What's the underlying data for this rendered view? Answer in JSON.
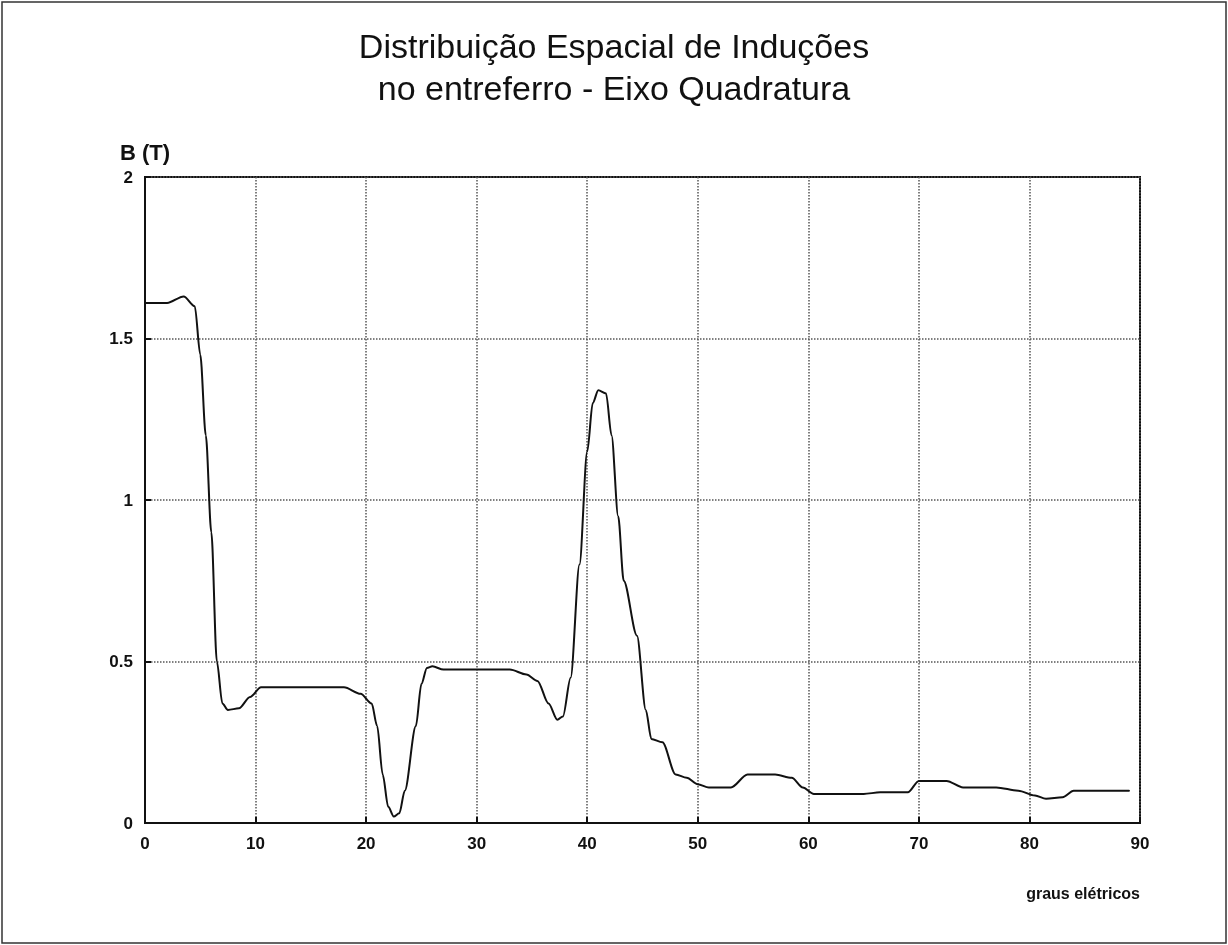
{
  "chart_data": {
    "type": "line",
    "title": "Distribuição Espacial de Induções\nno entreferro - Eixo Quadratura",
    "xlabel": "graus elétricos",
    "ylabel": "B (T)",
    "series": [
      {
        "color": "#111111",
        "x": [
          0,
          2,
          3.5,
          4.5,
          5,
          5.5,
          6,
          6.5,
          7,
          7.5,
          8.5,
          9.5,
          10.5,
          12,
          15,
          18,
          19.5,
          20.5,
          21,
          21.5,
          22,
          22.5,
          23,
          23.5,
          24.5,
          25,
          25.5,
          26,
          27,
          30,
          33,
          34.5,
          35.5,
          36.5,
          37.3,
          37.8,
          38.5,
          39.3,
          40,
          40.5,
          41,
          41.7,
          42.2,
          42.8,
          43.3,
          44.5,
          45.3,
          45.8,
          46.8,
          48,
          49,
          50,
          51,
          53,
          54.5,
          57,
          58.5,
          59.5,
          60.5,
          65,
          66.5,
          69,
          70,
          72.5,
          74,
          77,
          79,
          80.5,
          81.5,
          83,
          84,
          89
        ],
        "values": [
          1.61,
          1.61,
          1.63,
          1.6,
          1.45,
          1.2,
          0.9,
          0.5,
          0.37,
          0.35,
          0.355,
          0.39,
          0.42,
          0.42,
          0.42,
          0.42,
          0.4,
          0.37,
          0.3,
          0.15,
          0.05,
          0.02,
          0.03,
          0.1,
          0.3,
          0.43,
          0.48,
          0.485,
          0.475,
          0.475,
          0.475,
          0.46,
          0.44,
          0.37,
          0.32,
          0.33,
          0.45,
          0.8,
          1.15,
          1.3,
          1.34,
          1.33,
          1.2,
          0.95,
          0.75,
          0.58,
          0.35,
          0.26,
          0.25,
          0.15,
          0.14,
          0.12,
          0.11,
          0.11,
          0.15,
          0.15,
          0.14,
          0.11,
          0.09,
          0.09,
          0.095,
          0.095,
          0.13,
          0.13,
          0.11,
          0.11,
          0.1,
          0.085,
          0.075,
          0.08,
          0.1,
          0.1
        ]
      }
    ],
    "xlim": [
      0,
      90
    ],
    "xticks": [
      0,
      10,
      20,
      30,
      40,
      50,
      60,
      70,
      80,
      90
    ],
    "ylim": [
      0,
      2
    ],
    "yticks": [
      0,
      0.5,
      1,
      1.5,
      2
    ],
    "grid": true,
    "marker": "none",
    "line_style": "solid"
  }
}
